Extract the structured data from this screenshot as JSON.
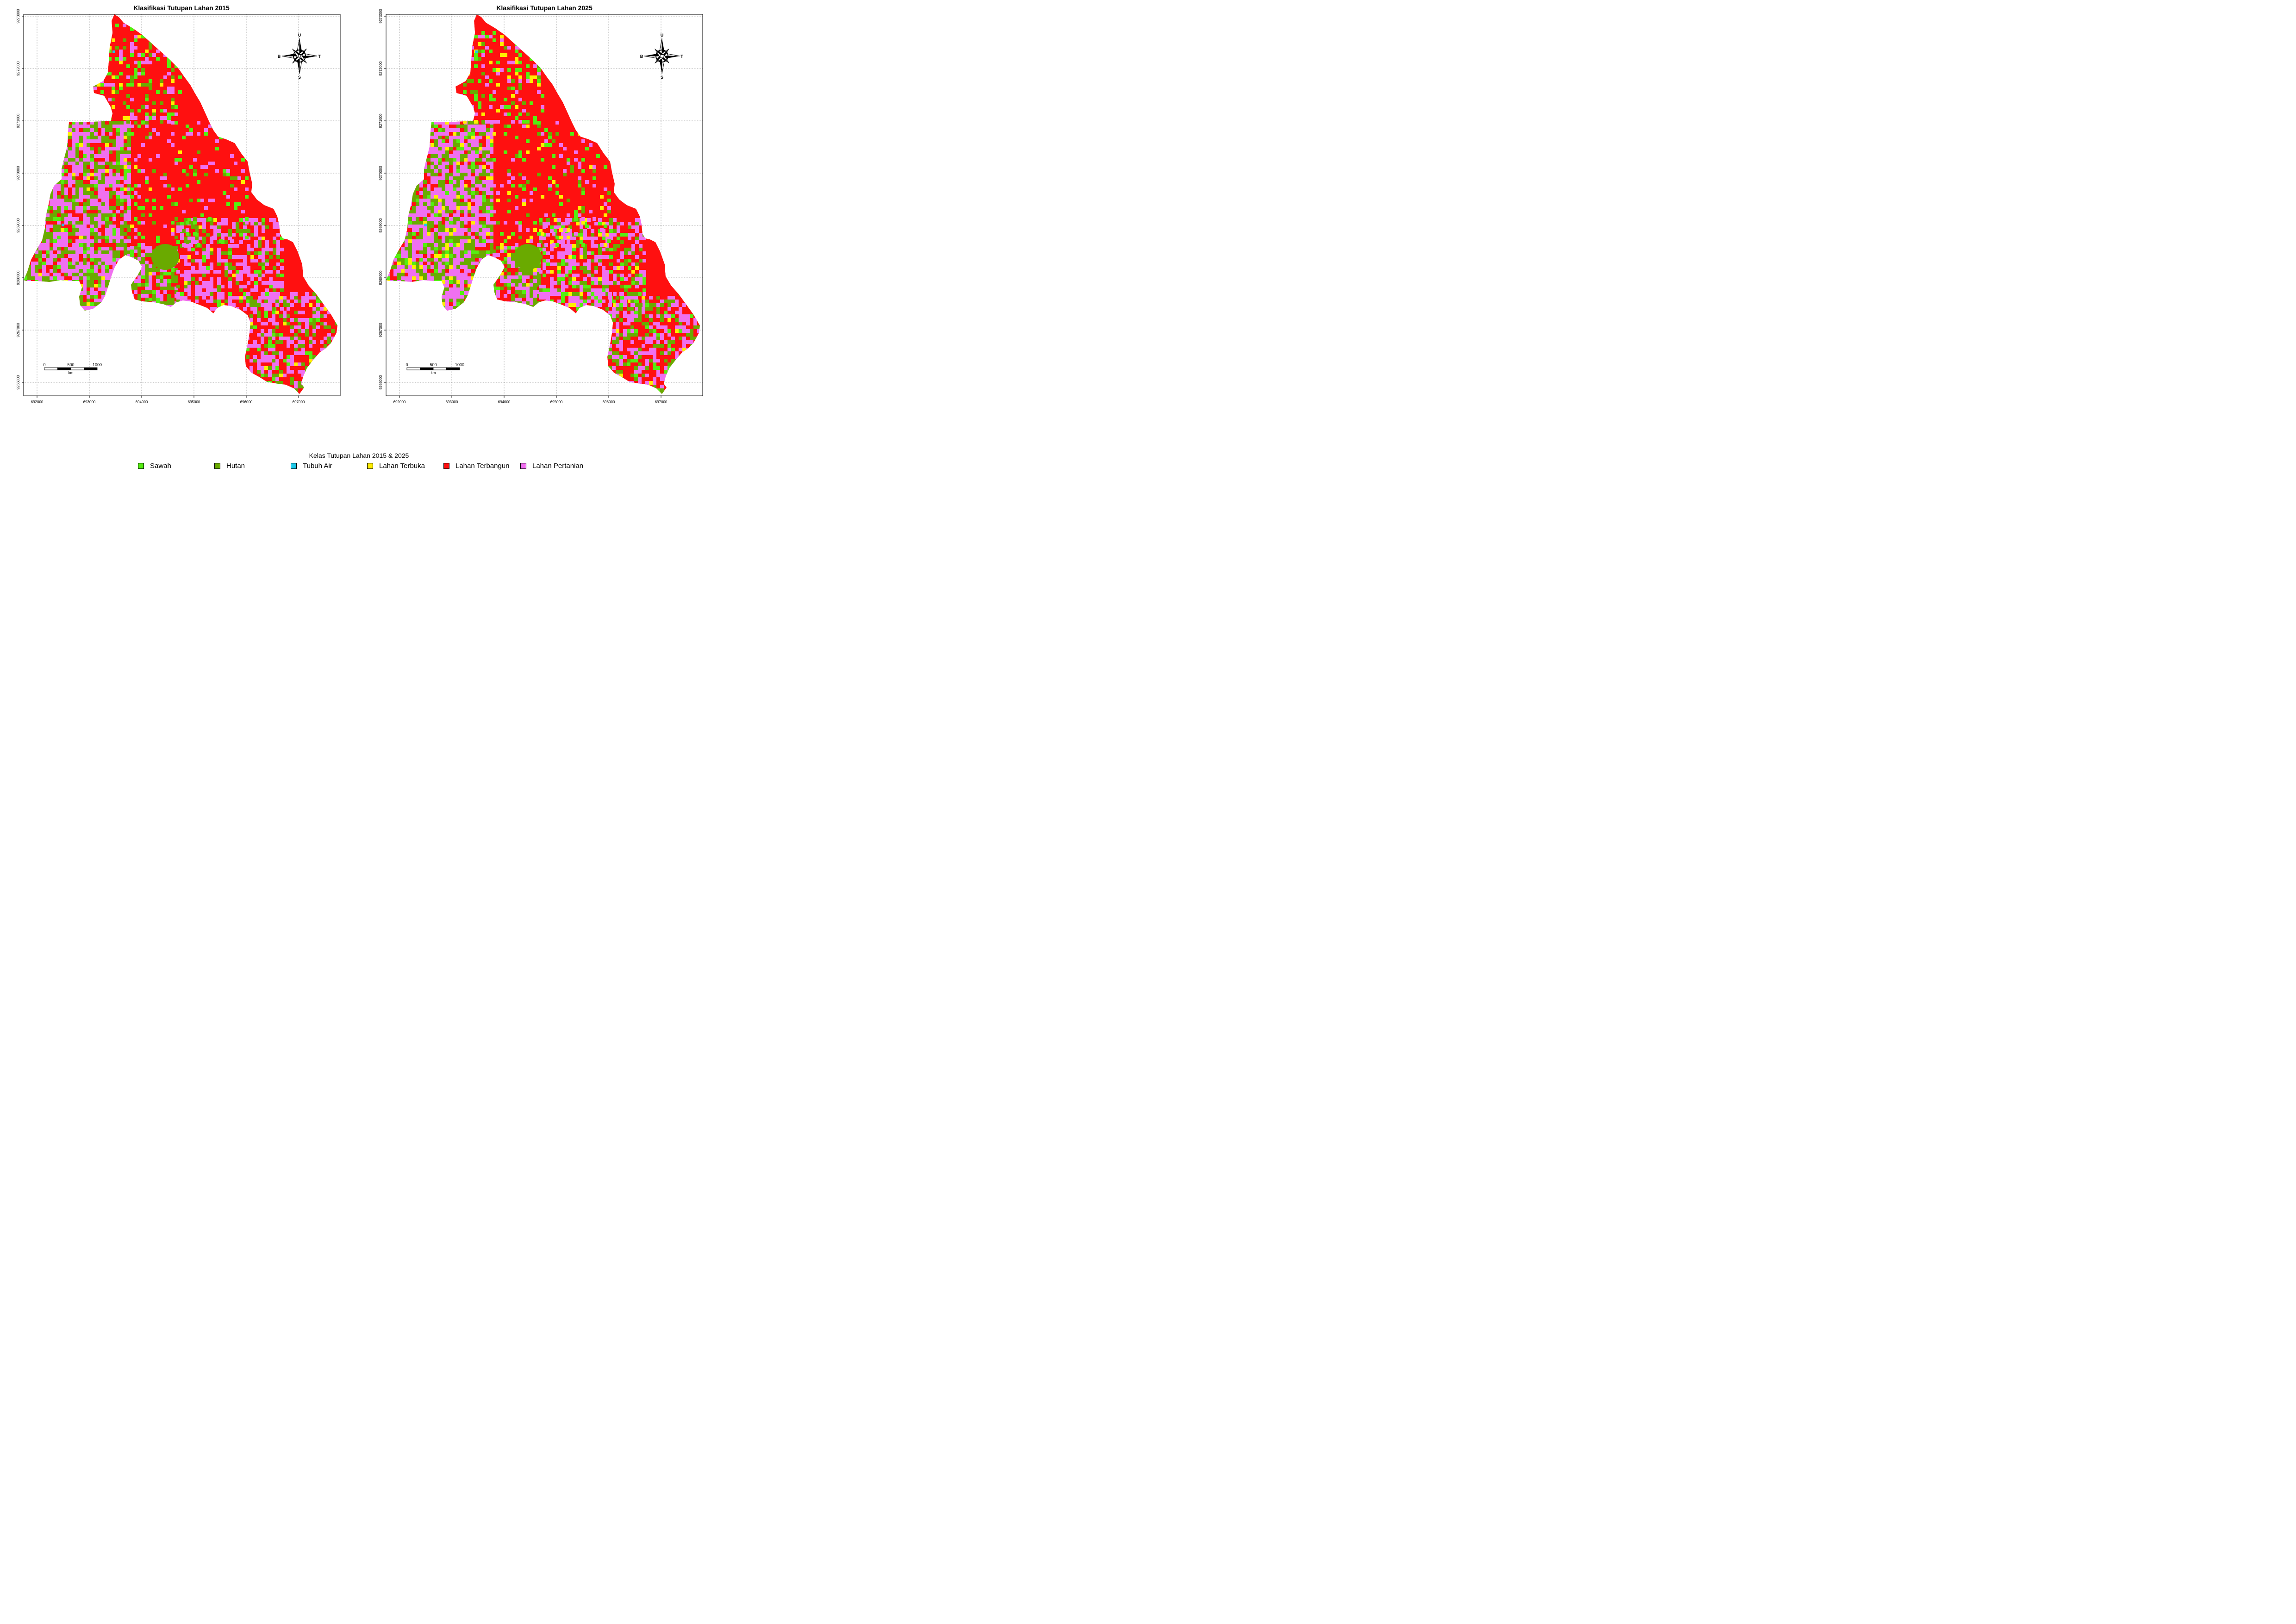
{
  "panels": [
    {
      "id": "2015",
      "title": "Klasifikasi Tutupan Lahan 2015",
      "x_ticks": [
        "692000",
        "693000",
        "694000",
        "695000",
        "696000",
        "697000"
      ],
      "y_ticks": [
        "9273000",
        "9272000",
        "9271000",
        "9270000",
        "9269000",
        "9268000",
        "9267000",
        "9266000"
      ],
      "compass": {
        "north": "U",
        "south": "S",
        "east": "T",
        "west": "B"
      },
      "scale_bar": {
        "labels": [
          "0",
          "500",
          "1000"
        ],
        "unit": "km"
      }
    },
    {
      "id": "2025",
      "title": "Klasifikasi Tutupan Lahan 2025",
      "x_ticks": [
        "692000",
        "693000",
        "694000",
        "695000",
        "696000",
        "697000"
      ],
      "y_ticks": [
        "9273000",
        "9272000",
        "9271000",
        "9270000",
        "9269000",
        "9268000",
        "9267000",
        "9266000"
      ],
      "compass": {
        "north": "U",
        "south": "S",
        "east": "T",
        "west": "B"
      },
      "scale_bar": {
        "labels": [
          "0",
          "500",
          "1000"
        ],
        "unit": "km"
      }
    }
  ],
  "legend": {
    "title": "Kelas Tutupan Lahan 2015 & 2025",
    "items": [
      {
        "label": "Sawah",
        "color": "#55ee11"
      },
      {
        "label": "Hutan",
        "color": "#6aaa00"
      },
      {
        "label": "Tubuh Air",
        "color": "#1ec8e8"
      },
      {
        "label": "Lahan Terbuka",
        "color": "#ffee00"
      },
      {
        "label": "Lahan Terbangun",
        "color": "#ff1010"
      },
      {
        "label": "Lahan Pertanian",
        "color": "#f070f0"
      }
    ]
  }
}
